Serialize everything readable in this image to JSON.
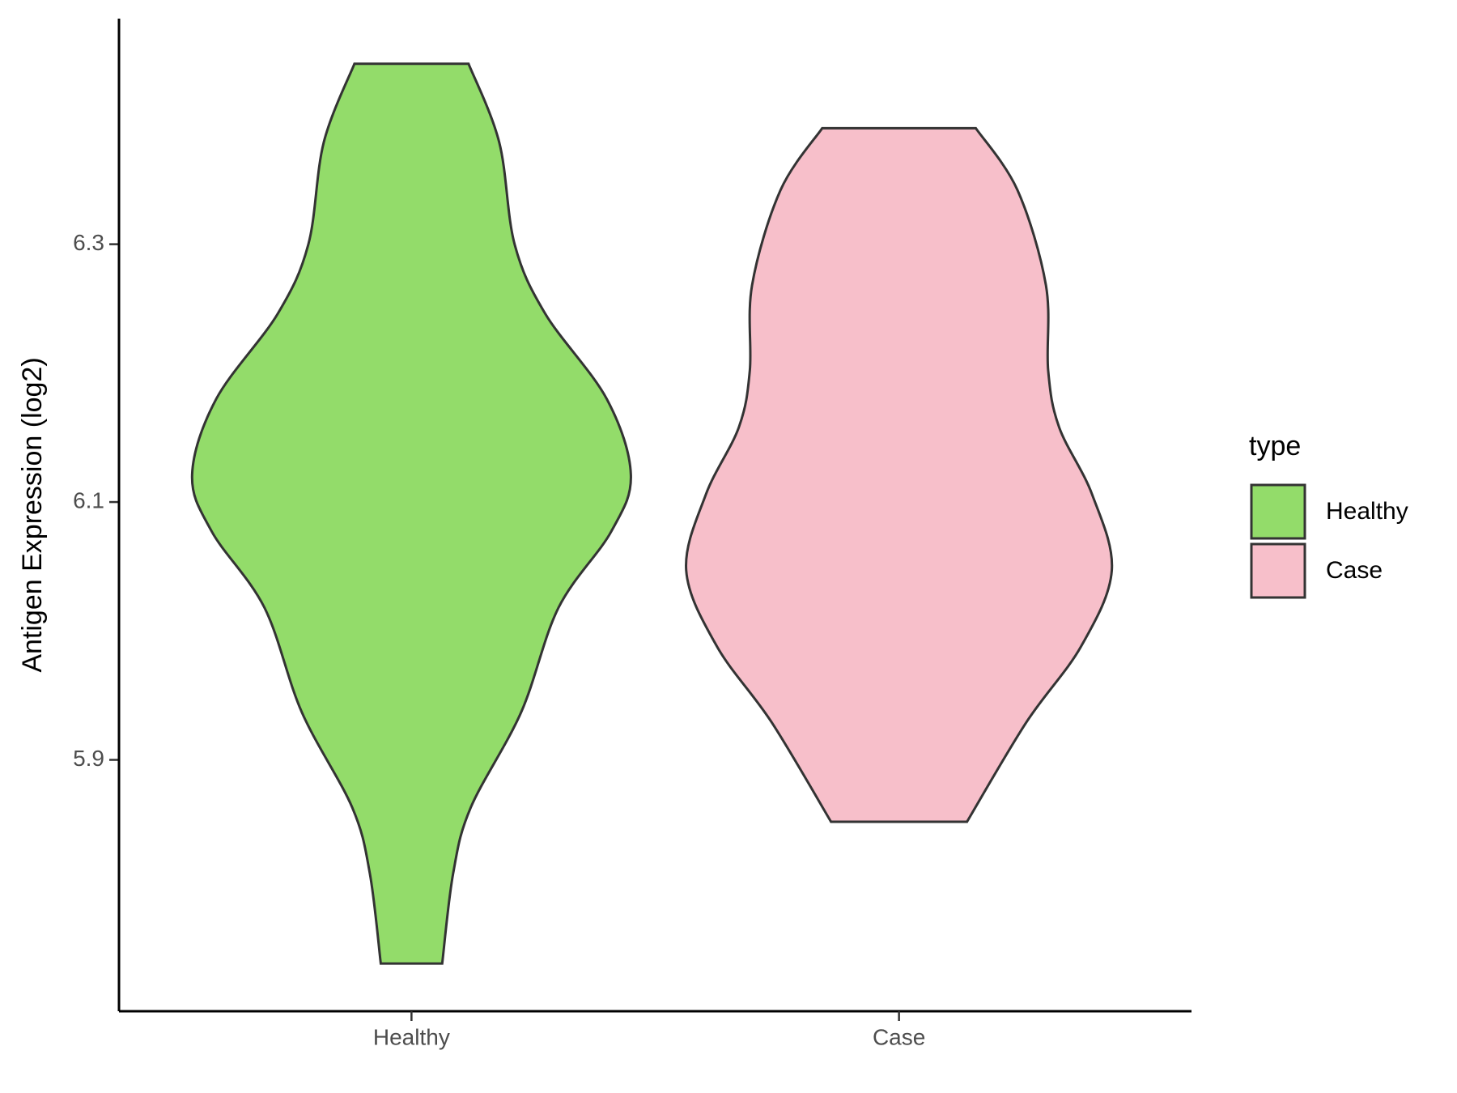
{
  "chart_data": {
    "type": "violin",
    "y_label": "Antigen Expression (log2)",
    "categories": [
      "Healthy",
      "Case"
    ],
    "ylim": [
      5.705,
      6.475
    ],
    "yticks": [
      5.9,
      6.1,
      6.3
    ],
    "legend_title": "type",
    "legend_position": "right",
    "series": [
      {
        "name": "Healthy",
        "color": "#93dc6a",
        "y": [
          6.44,
          6.379,
          6.3,
          6.246,
          6.18,
          6.121,
          6.077,
          6.018,
          5.937,
          5.863,
          5.812,
          5.742
        ],
        "density": [
          0.26,
          0.4,
          0.47,
          0.61,
          0.89,
          1.0,
          0.91,
          0.67,
          0.5,
          0.27,
          0.19,
          0.14
        ]
      },
      {
        "name": "Case",
        "color": "#f7bfca",
        "y": [
          6.39,
          6.342,
          6.268,
          6.202,
          6.158,
          6.106,
          6.047,
          5.988,
          5.929,
          5.852
        ],
        "density": [
          0.35,
          0.54,
          0.67,
          0.68,
          0.73,
          0.88,
          0.97,
          0.83,
          0.58,
          0.31
        ]
      }
    ]
  }
}
